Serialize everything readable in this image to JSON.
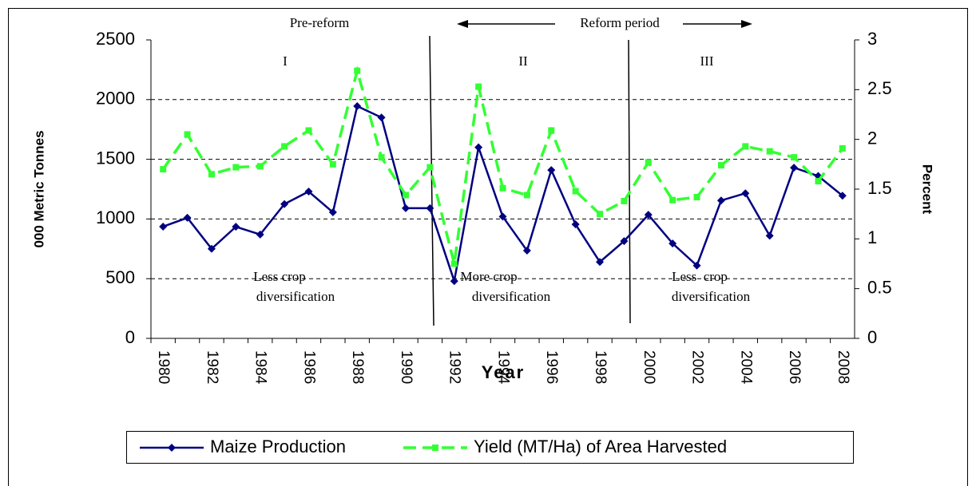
{
  "chart_data": {
    "type": "line",
    "y_label": "000 Metric Tonnes",
    "y2_label": "Percent",
    "x_label": "Year",
    "x": [
      1980,
      1981,
      1982,
      1983,
      1984,
      1985,
      1986,
      1987,
      1988,
      1989,
      1990,
      1991,
      1992,
      1993,
      1994,
      1995,
      1996,
      1997,
      1998,
      1999,
      2000,
      2001,
      2002,
      2003,
      2004,
      2005,
      2006,
      2007,
      2008
    ],
    "xlim": [
      1979.5,
      2008.5
    ],
    "xticks": [
      1980,
      1982,
      1984,
      1986,
      1988,
      1990,
      1992,
      1994,
      1996,
      1998,
      2000,
      2002,
      2004,
      2006,
      2008
    ],
    "ylim": [
      0,
      2500
    ],
    "yticks": [
      0,
      500,
      1000,
      1500,
      2000,
      2500
    ],
    "y2lim": [
      0,
      3
    ],
    "y2ticks": [
      0,
      0.5,
      1,
      1.5,
      2,
      2.5,
      3
    ],
    "grid": true,
    "legend": "bottom",
    "series": [
      {
        "name": "Maize Production",
        "color": "#000080",
        "values": [
          936,
          1010,
          750,
          935,
          870,
          1125,
          1230,
          1056,
          1945,
          1850,
          1090,
          1090,
          480,
          1600,
          1020,
          735,
          1410,
          955,
          640,
          815,
          1035,
          795,
          610,
          1155,
          1215,
          860,
          1430,
          1360,
          1195
        ]
      },
      {
        "name": "Yield (MT/Ha) of Area Harvested",
        "color": "#33ff33",
        "axis": "y2",
        "values": [
          1.7,
          2.05,
          1.65,
          1.72,
          1.73,
          1.93,
          2.09,
          1.75,
          2.69,
          1.82,
          1.44,
          1.72,
          0.75,
          2.53,
          1.51,
          1.44,
          2.09,
          1.48,
          1.25,
          1.38,
          1.77,
          1.39,
          1.42,
          1.74,
          1.93,
          1.88,
          1.82,
          1.58,
          1.91
        ]
      }
    ],
    "annotations": [
      "Pre-reform",
      "Reform period",
      "I",
      "II",
      "III",
      "Less crop",
      "diversification",
      "More crop",
      "diversification",
      "Less  crop",
      "diversification"
    ]
  }
}
